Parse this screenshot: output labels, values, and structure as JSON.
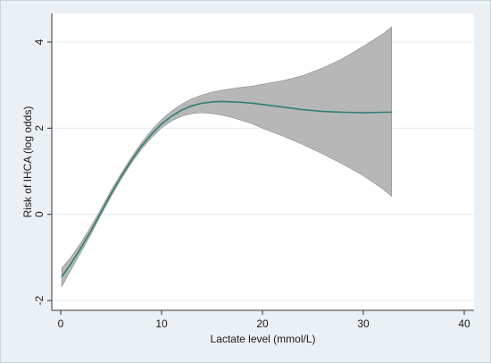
{
  "chart_data": {
    "type": "line",
    "title": "",
    "xlabel": "Lactate level (mmol/L)",
    "ylabel": "Risk of IHCA (log odds)",
    "xlim": [
      0,
      40
    ],
    "ylim": [
      -2,
      4
    ],
    "xticks": [
      0,
      10,
      20,
      30,
      40
    ],
    "yticks": [
      -2,
      0,
      2,
      4
    ],
    "xtick_labels": [
      "0",
      "10",
      "20",
      "30",
      "40"
    ],
    "ytick_labels": [
      "-2",
      "0",
      "2",
      "4"
    ],
    "grid": "horizontal",
    "legend": "none",
    "colors": {
      "line": "#2e7d73",
      "ci_band": "#b7b7b7",
      "ci_edge": "#8a8a8a",
      "plot_bg": "#ffffff",
      "frame_bg": "#eaf0f4",
      "grid": "#e6ecf0"
    },
    "series": [
      {
        "kind": "line",
        "x": [
          0.1,
          1,
          2,
          3,
          4,
          5,
          6,
          7,
          8,
          9,
          10,
          11,
          12,
          13,
          14,
          15,
          16,
          17,
          18,
          19,
          20,
          22,
          24,
          26,
          28,
          30,
          32,
          32.8
        ],
        "y": [
          -1.45,
          -1.15,
          -0.78,
          -0.38,
          0.05,
          0.48,
          0.88,
          1.25,
          1.58,
          1.86,
          2.1,
          2.28,
          2.42,
          2.52,
          2.58,
          2.61,
          2.62,
          2.61,
          2.6,
          2.58,
          2.55,
          2.49,
          2.43,
          2.39,
          2.37,
          2.36,
          2.37,
          2.37
        ]
      },
      {
        "kind": "ci_band",
        "x": [
          0.1,
          1,
          2,
          3,
          4,
          5,
          6,
          7,
          8,
          9,
          10,
          11,
          12,
          13,
          14,
          15,
          16,
          17,
          18,
          19,
          20,
          22,
          24,
          26,
          28,
          30,
          32,
          32.8
        ],
        "lower": [
          -1.68,
          -1.3,
          -0.88,
          -0.46,
          -0.01,
          0.42,
          0.82,
          1.19,
          1.51,
          1.78,
          2.01,
          2.17,
          2.28,
          2.34,
          2.36,
          2.34,
          2.3,
          2.25,
          2.18,
          2.1,
          2.0,
          1.82,
          1.62,
          1.4,
          1.16,
          0.9,
          0.58,
          0.42
        ],
        "upper": [
          -1.25,
          -1.0,
          -0.66,
          -0.28,
          0.13,
          0.56,
          0.95,
          1.32,
          1.66,
          1.95,
          2.2,
          2.4,
          2.56,
          2.68,
          2.77,
          2.84,
          2.88,
          2.92,
          2.95,
          2.98,
          3.02,
          3.1,
          3.22,
          3.4,
          3.62,
          3.9,
          4.2,
          4.35
        ]
      }
    ]
  }
}
